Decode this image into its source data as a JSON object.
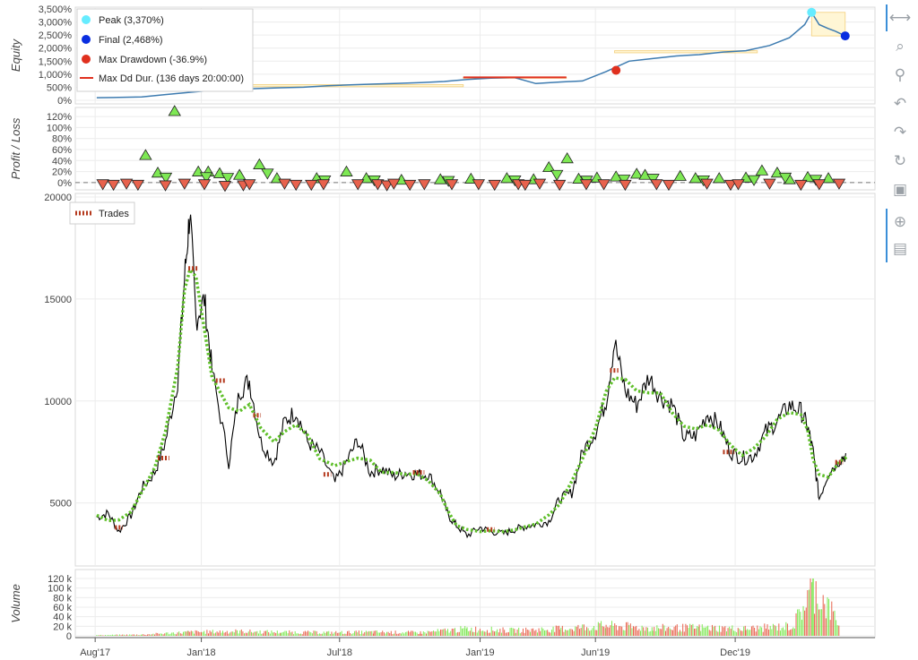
{
  "chart_data": [
    {
      "type": "line",
      "ylabel": "Equity",
      "ylim": [
        0,
        3500
      ],
      "yticks": [
        "0%",
        "500%",
        "1,000%",
        "1,500%",
        "2,000%",
        "2,500%",
        "3,000%",
        "3,500%"
      ],
      "x": [
        "2017-08-17",
        "2017-09-15",
        "2017-10-15",
        "2017-11-15",
        "2017-12-15",
        "2018-01-15",
        "2018-02-15",
        "2018-03-15",
        "2018-04-15",
        "2018-05-15",
        "2018-06-15",
        "2018-07-15",
        "2018-08-15",
        "2018-09-15",
        "2018-10-15",
        "2018-11-15",
        "2018-12-15",
        "2019-01-15",
        "2019-02-15",
        "2019-03-15",
        "2019-04-15",
        "2019-05-15",
        "2019-06-15",
        "2019-07-15",
        "2019-08-15",
        "2019-09-15",
        "2019-10-15",
        "2019-11-15",
        "2019-12-15",
        "2020-01-15",
        "2020-02-10",
        "2020-02-20",
        "2020-03-01",
        "2020-03-10",
        "2020-03-20",
        "2020-04-01",
        "2020-04-10",
        "2020-04-23"
      ],
      "values": [
        100,
        110,
        130,
        220,
        300,
        380,
        420,
        450,
        480,
        500,
        560,
        590,
        620,
        650,
        680,
        720,
        800,
        850,
        870,
        640,
        700,
        740,
        1100,
        1500,
        1600,
        1700,
        1750,
        1850,
        1900,
        2100,
        2400,
        2650,
        2900,
        3370,
        2900,
        2750,
        2650,
        2468
      ],
      "markers": {
        "peak": {
          "label": "Peak (3,370%)",
          "x": "2020-03-10",
          "y": 3370,
          "color": "#66ecff"
        },
        "final": {
          "label": "Final (2,468%)",
          "x": "2020-04-23",
          "y": 2468,
          "color": "#0a2ee0"
        },
        "max_drawdown": {
          "label": "Max Drawdown (-36.9%)",
          "x": "2019-06-28",
          "y": 1150,
          "color": "#e0301e"
        },
        "max_dd_duration": {
          "label": "Max Dd Dur. (136 days 20:00:00)",
          "x_start": "2018-12-10",
          "x_end": "2019-04-24",
          "y": 880,
          "color": "#e0301e"
        }
      },
      "legend_position": "top-left",
      "line_color": "#3d7bb0"
    },
    {
      "type": "scatter",
      "ylabel": "Profit / Loss",
      "ylim": [
        -10,
        130
      ],
      "yticks": [
        "0%",
        "20%",
        "40%",
        "60%",
        "80%",
        "100%",
        "120%"
      ],
      "winners": [
        {
          "x": "2017-10-20",
          "y": 50
        },
        {
          "x": "2017-11-05",
          "y": 18
        },
        {
          "x": "2017-11-27",
          "y": 130
        },
        {
          "x": "2017-12-28",
          "y": 20
        },
        {
          "x": "2018-01-10",
          "y": 20
        },
        {
          "x": "2018-01-25",
          "y": 17
        },
        {
          "x": "2018-02-20",
          "y": 14
        },
        {
          "x": "2018-03-18",
          "y": 33
        },
        {
          "x": "2018-04-10",
          "y": 8
        },
        {
          "x": "2018-06-01",
          "y": 8
        },
        {
          "x": "2018-07-10",
          "y": 20
        },
        {
          "x": "2018-08-05",
          "y": 8
        },
        {
          "x": "2018-09-20",
          "y": 5
        },
        {
          "x": "2018-11-10",
          "y": 6
        },
        {
          "x": "2018-12-20",
          "y": 7
        },
        {
          "x": "2019-02-05",
          "y": 8
        },
        {
          "x": "2019-03-12",
          "y": 6
        },
        {
          "x": "2019-04-01",
          "y": 28
        },
        {
          "x": "2019-04-25",
          "y": 44
        },
        {
          "x": "2019-05-10",
          "y": 7
        },
        {
          "x": "2019-06-03",
          "y": 9
        },
        {
          "x": "2019-06-28",
          "y": 11
        },
        {
          "x": "2019-07-25",
          "y": 16
        },
        {
          "x": "2019-08-05",
          "y": 14
        },
        {
          "x": "2019-09-20",
          "y": 12
        },
        {
          "x": "2019-10-10",
          "y": 8
        },
        {
          "x": "2019-11-10",
          "y": 8
        },
        {
          "x": "2019-12-15",
          "y": 9
        },
        {
          "x": "2020-01-05",
          "y": 22
        },
        {
          "x": "2020-01-25",
          "y": 18
        },
        {
          "x": "2020-02-10",
          "y": 6
        },
        {
          "x": "2020-03-05",
          "y": 10
        },
        {
          "x": "2020-04-01",
          "y": 8
        }
      ],
      "losers": [
        {
          "x": "2017-08-25",
          "y": -3
        },
        {
          "x": "2017-09-08",
          "y": -4
        },
        {
          "x": "2017-09-25",
          "y": -2
        },
        {
          "x": "2017-10-10",
          "y": -4
        },
        {
          "x": "2017-11-15",
          "y": -5
        },
        {
          "x": "2017-12-10",
          "y": -2
        },
        {
          "x": "2018-01-05",
          "y": -3
        },
        {
          "x": "2018-02-01",
          "y": -6
        },
        {
          "x": "2018-02-25",
          "y": -5
        },
        {
          "x": "2018-03-05",
          "y": -3
        },
        {
          "x": "2018-04-20",
          "y": -2
        },
        {
          "x": "2018-05-05",
          "y": -4
        },
        {
          "x": "2018-05-25",
          "y": -4
        },
        {
          "x": "2018-06-10",
          "y": -3
        },
        {
          "x": "2018-07-25",
          "y": -3
        },
        {
          "x": "2018-08-20",
          "y": -3
        },
        {
          "x": "2018-09-01",
          "y": -5
        },
        {
          "x": "2018-09-10",
          "y": -2
        },
        {
          "x": "2018-10-01",
          "y": -4
        },
        {
          "x": "2018-10-20",
          "y": -3
        },
        {
          "x": "2018-11-25",
          "y": -3
        },
        {
          "x": "2018-12-30",
          "y": -3
        },
        {
          "x": "2019-01-20",
          "y": -4
        },
        {
          "x": "2019-02-20",
          "y": -3
        },
        {
          "x": "2019-03-01",
          "y": -4
        },
        {
          "x": "2019-03-20",
          "y": -2
        },
        {
          "x": "2019-04-15",
          "y": -4
        },
        {
          "x": "2019-05-20",
          "y": -3
        },
        {
          "x": "2019-06-12",
          "y": -3
        },
        {
          "x": "2019-07-10",
          "y": -4
        },
        {
          "x": "2019-08-20",
          "y": -3
        },
        {
          "x": "2019-09-05",
          "y": -4
        },
        {
          "x": "2019-10-25",
          "y": -2
        },
        {
          "x": "2019-11-25",
          "y": -4
        },
        {
          "x": "2019-12-05",
          "y": -3
        },
        {
          "x": "2020-01-15",
          "y": -2
        },
        {
          "x": "2020-02-25",
          "y": -4
        },
        {
          "x": "2020-03-20",
          "y": -3
        },
        {
          "x": "2020-04-15",
          "y": -2
        }
      ],
      "winner_color": "#7ee854",
      "loser_color": "#e8624d"
    },
    {
      "type": "line",
      "ylim": [
        2000,
        20000
      ],
      "yticks": [
        "5000",
        "10000",
        "15000",
        "20000"
      ],
      "x": [
        "2017-08-17",
        "2017-09-01",
        "2017-09-15",
        "2017-10-01",
        "2017-10-15",
        "2017-11-01",
        "2017-11-15",
        "2017-12-01",
        "2017-12-10",
        "2017-12-17",
        "2017-12-25",
        "2018-01-05",
        "2018-01-15",
        "2018-02-06",
        "2018-02-20",
        "2018-03-05",
        "2018-03-20",
        "2018-04-06",
        "2018-04-20",
        "2018-05-05",
        "2018-05-20",
        "2018-06-05",
        "2018-06-25",
        "2018-07-10",
        "2018-07-25",
        "2018-08-10",
        "2018-08-25",
        "2018-09-10",
        "2018-09-25",
        "2018-10-10",
        "2018-10-25",
        "2018-11-10",
        "2018-11-20",
        "2018-12-01",
        "2018-12-15",
        "2019-01-01",
        "2019-01-15",
        "2019-02-01",
        "2019-02-15",
        "2019-03-01",
        "2019-03-15",
        "2019-04-01",
        "2019-04-15",
        "2019-05-01",
        "2019-05-15",
        "2019-06-01",
        "2019-06-15",
        "2019-06-26",
        "2019-07-10",
        "2019-07-25",
        "2019-08-10",
        "2019-08-25",
        "2019-09-10",
        "2019-09-25",
        "2019-10-10",
        "2019-10-26",
        "2019-11-10",
        "2019-11-25",
        "2019-12-10",
        "2019-12-25",
        "2020-01-10",
        "2020-01-25",
        "2020-02-10",
        "2020-02-25",
        "2020-03-05",
        "2020-03-12",
        "2020-03-20",
        "2020-04-01",
        "2020-04-15",
        "2020-04-25"
      ],
      "values": [
        4300,
        4500,
        3600,
        4400,
        5700,
        6500,
        8000,
        11000,
        16000,
        19300,
        14000,
        15000,
        11500,
        7000,
        10500,
        11000,
        8000,
        7000,
        9000,
        9500,
        8000,
        7500,
        6000,
        7000,
        8100,
        6500,
        6700,
        6300,
        6500,
        6400,
        6400,
        5500,
        4400,
        3900,
        3400,
        3800,
        3600,
        3500,
        3700,
        3850,
        3950,
        4100,
        5200,
        5500,
        7500,
        8500,
        10000,
        12900,
        10500,
        9800,
        11200,
        10200,
        9800,
        8200,
        8300,
        9400,
        8800,
        7500,
        7200,
        7300,
        8500,
        9000,
        9800,
        9500,
        8700,
        7500,
        5200,
        6500,
        7100,
        7400
      ],
      "trades": [
        {
          "entry": "2017-09-10",
          "exit": "2017-09-20",
          "price": 3800
        },
        {
          "entry": "2017-11-05",
          "exit": "2017-11-20",
          "price": 7200
        },
        {
          "entry": "2017-12-15",
          "exit": "2017-12-28",
          "price": 16500
        },
        {
          "entry": "2018-01-20",
          "exit": "2018-02-01",
          "price": 11000
        },
        {
          "entry": "2018-03-10",
          "exit": "2018-03-20",
          "price": 9300
        },
        {
          "entry": "2018-06-10",
          "exit": "2018-06-20",
          "price": 6400
        },
        {
          "entry": "2018-10-05",
          "exit": "2018-10-20",
          "price": 6500
        },
        {
          "entry": "2019-01-10",
          "exit": "2019-01-20",
          "price": 3700
        },
        {
          "entry": "2019-06-20",
          "exit": "2019-07-01",
          "price": 11500
        },
        {
          "entry": "2019-11-15",
          "exit": "2019-11-30",
          "price": 7500
        },
        {
          "entry": "2020-04-10",
          "exit": "2020-04-20",
          "price": 7000
        }
      ],
      "legend": [
        "Trades"
      ],
      "legend_position": "top-left",
      "line_color": "#000000",
      "ma_color": "#5fbf2a",
      "trade_color": "#b53a1e"
    },
    {
      "type": "bar",
      "ylabel": "Volume",
      "ylim": [
        0,
        120000
      ],
      "yticks": [
        "0",
        "20 k",
        "40 k",
        "60 k",
        "80 k",
        "100 k",
        "120 k"
      ],
      "x": [
        "2017-08-17",
        "2017-10-15",
        "2017-12-15",
        "2018-02-15",
        "2018-04-15",
        "2018-06-15",
        "2018-08-15",
        "2018-10-15",
        "2018-12-15",
        "2019-02-15",
        "2019-04-15",
        "2019-06-15",
        "2019-08-15",
        "2019-10-15",
        "2019-12-15",
        "2020-02-15",
        "2020-03-12",
        "2020-04-15"
      ],
      "values": [
        1500,
        3000,
        9000,
        11000,
        9000,
        8000,
        9000,
        8000,
        17000,
        13000,
        17000,
        25000,
        19000,
        20000,
        17000,
        24000,
        120000,
        34000
      ],
      "up_color": "#7ee854",
      "down_color": "#e8624d"
    }
  ],
  "x_axis": {
    "ticks": [
      "Aug'17",
      "Jan'18",
      "Jul'18",
      "Jan'19",
      "Jun'19",
      "Dec'19"
    ]
  },
  "legends": {
    "equity": [
      "Peak (3,370%)",
      "Final (2,468%)",
      "Max Drawdown (-36.9%)",
      "Max Dd Dur. (136 days 20:00:00)"
    ],
    "price": [
      "Trades"
    ]
  },
  "toolbar": [
    {
      "icon": "pan-icon",
      "glyph": "⟷",
      "active": true
    },
    {
      "icon": "box-zoom-icon",
      "glyph": "⌕",
      "active": false
    },
    {
      "icon": "wheel-zoom-icon",
      "glyph": "⚲",
      "active": false
    },
    {
      "icon": "undo-icon",
      "glyph": "↶",
      "active": false
    },
    {
      "icon": "redo-icon",
      "glyph": "↷",
      "active": false
    },
    {
      "icon": "reset-icon",
      "glyph": "↻",
      "active": false
    },
    {
      "icon": "save-icon",
      "glyph": "▣",
      "active": false
    },
    {
      "icon": "crosshair-icon",
      "glyph": "⊕",
      "active": true
    },
    {
      "icon": "hover-icon",
      "glyph": "▤",
      "active": true
    }
  ]
}
